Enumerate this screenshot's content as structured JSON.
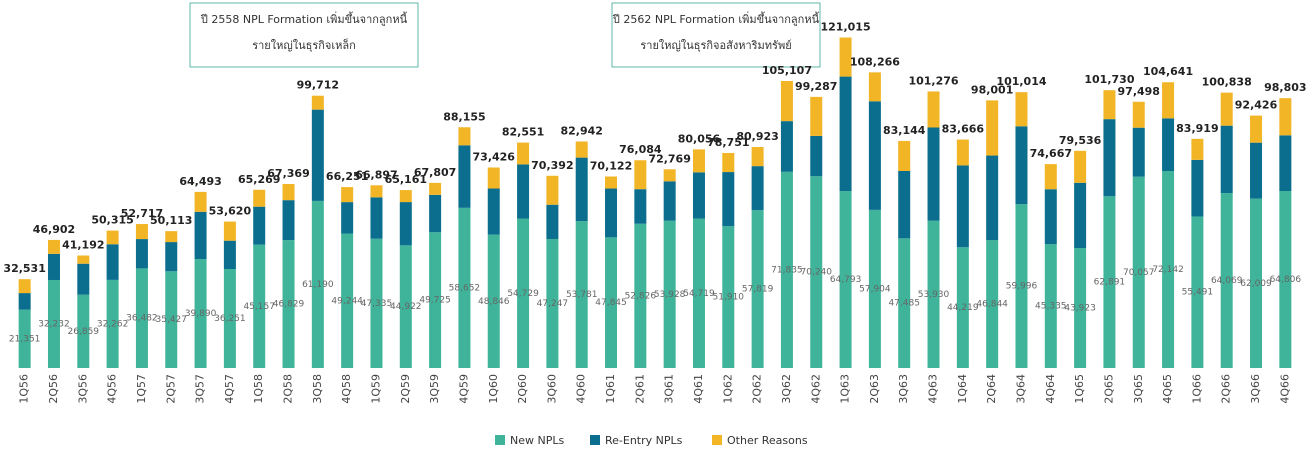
{
  "chart_data": {
    "type": "stacked_bar",
    "categories": [
      "1Q56",
      "2Q56",
      "3Q56",
      "4Q56",
      "1Q57",
      "2Q57",
      "3Q57",
      "4Q57",
      "1Q58",
      "2Q58",
      "3Q58",
      "4Q58",
      "1Q59",
      "2Q59",
      "3Q59",
      "4Q59",
      "1Q60",
      "2Q60",
      "3Q60",
      "4Q60",
      "1Q61",
      "2Q61",
      "3Q61",
      "4Q61",
      "1Q62",
      "2Q62",
      "3Q62",
      "4Q62",
      "1Q63",
      "2Q63",
      "3Q63",
      "4Q63",
      "1Q64",
      "2Q64",
      "3Q64",
      "4Q64",
      "1Q65",
      "2Q65",
      "3Q65",
      "4Q65",
      "1Q66",
      "2Q66",
      "3Q66",
      "4Q66"
    ],
    "series": [
      {
        "name": "New NPLs",
        "color": "#3fb49a",
        "values": [
          21351,
          32232,
          26859,
          32262,
          36482,
          35427,
          39890,
          36251,
          45157,
          46829,
          61190,
          49244,
          47335,
          44922,
          49725,
          58652,
          48846,
          54729,
          47247,
          53781,
          47845,
          52826,
          53928,
          54719,
          51910,
          57819,
          71835,
          70240,
          64793,
          57904,
          47485,
          53930,
          44219,
          46844,
          59996,
          45335,
          43923,
          62891,
          70057,
          72142,
          55491,
          64069,
          62009,
          64806
        ],
        "value_labels": [
          "21,351",
          "32,232",
          "26,859",
          "32,262",
          "36,482",
          "35,427",
          "39,890",
          "36,251",
          "45,157",
          "46,829",
          "61,190",
          "49,244",
          "47,335",
          "44,922",
          "49,725",
          "58,652",
          "48,846",
          "54,729",
          "47,247",
          "53,781",
          "47,845",
          "52,826",
          "53,928",
          "54,719",
          "51,910",
          "57,819",
          "71,835",
          "70,240",
          "64,793",
          "57,904",
          "47,485",
          "53,930",
          "44,219",
          "46,844",
          "59,996",
          "45,335",
          "43,923",
          "62,891",
          "70,057",
          "72,142",
          "55,491",
          "64,069",
          "62,009",
          "64,806"
        ]
      },
      {
        "name": "Re-Entry NPLs",
        "color": "#0b6e8e",
        "values": [
          6080,
          9570,
          11333,
          13053,
          10735,
          10686,
          17303,
          10369,
          13912,
          14640,
          33422,
          11507,
          15162,
          15839,
          13682,
          22903,
          16880,
          19822,
          12545,
          23261,
          17877,
          12658,
          14441,
          16937,
          19841,
          16104,
          18572,
          14747,
          41922,
          39762,
          24659,
          34146,
          29947,
          30957,
          28518,
          20132,
          23913,
          28239,
          17941,
          19299,
          20728,
          24669,
          20517,
          20397
        ]
      },
      {
        "name": "Other Reasons",
        "color": "#f2b526",
        "values": [
          5100,
          5100,
          3000,
          5000,
          5500,
          4000,
          7300,
          7000,
          6200,
          5900,
          5100,
          5500,
          4400,
          4400,
          4400,
          6600,
          7700,
          8000,
          10600,
          5900,
          4400,
          10600,
          4400,
          8400,
          7000,
          7000,
          14700,
          14300,
          14300,
          10600,
          11000,
          13200,
          9500,
          20200,
          12500,
          9200,
          11700,
          10600,
          9500,
          13200,
          7700,
          12100,
          9900,
          13600
        ]
      }
    ],
    "totals": [
      32531,
      46902,
      41192,
      50315,
      52717,
      50113,
      64493,
      53620,
      65269,
      67369,
      99712,
      66251,
      66897,
      65161,
      67807,
      88155,
      73426,
      82551,
      70392,
      82942,
      70122,
      76084,
      72769,
      80056,
      78751,
      80923,
      105107,
      99287,
      121015,
      108266,
      83144,
      101276,
      83666,
      98001,
      101014,
      74667,
      79536,
      101730,
      97498,
      104641,
      83919,
      100838,
      92426,
      98803
    ],
    "total_labels": [
      "32,531",
      "46,902",
      "41,192",
      "50,315",
      "52,717",
      "50,113",
      "64,493",
      "53,620",
      "65,269",
      "67,369",
      "99,712",
      "66,251",
      "66,897",
      "65,161",
      "67,807",
      "88,155",
      "73,426",
      "82,551",
      "70,392",
      "82,942",
      "70,122",
      "76,084",
      "72,769",
      "80,056",
      "78,751",
      "80,923",
      "105,107",
      "99,287",
      "121,015",
      "108,266",
      "83,144",
      "101,276",
      "83,666",
      "98,001",
      "101,014",
      "74,667",
      "79,536",
      "101,730",
      "97,498",
      "104,641",
      "83,919",
      "100,838",
      "92,426",
      "98,803"
    ],
    "ylim": [
      0,
      130000
    ],
    "legend": "bottom",
    "annotations": [
      {
        "lines": [
          "ปี 2558 NPL Formation เพิ่มขึ้นจากลูกหนี้",
          "รายใหญ่ในธุรกิจเหล็ก"
        ]
      },
      {
        "lines": [
          "ปี 2562 NPL Formation เพิ่มขึ้นจากลูกหนี้",
          "รายใหญ่ในธุรกิจอสังหาริมทรัพย์"
        ]
      }
    ]
  }
}
